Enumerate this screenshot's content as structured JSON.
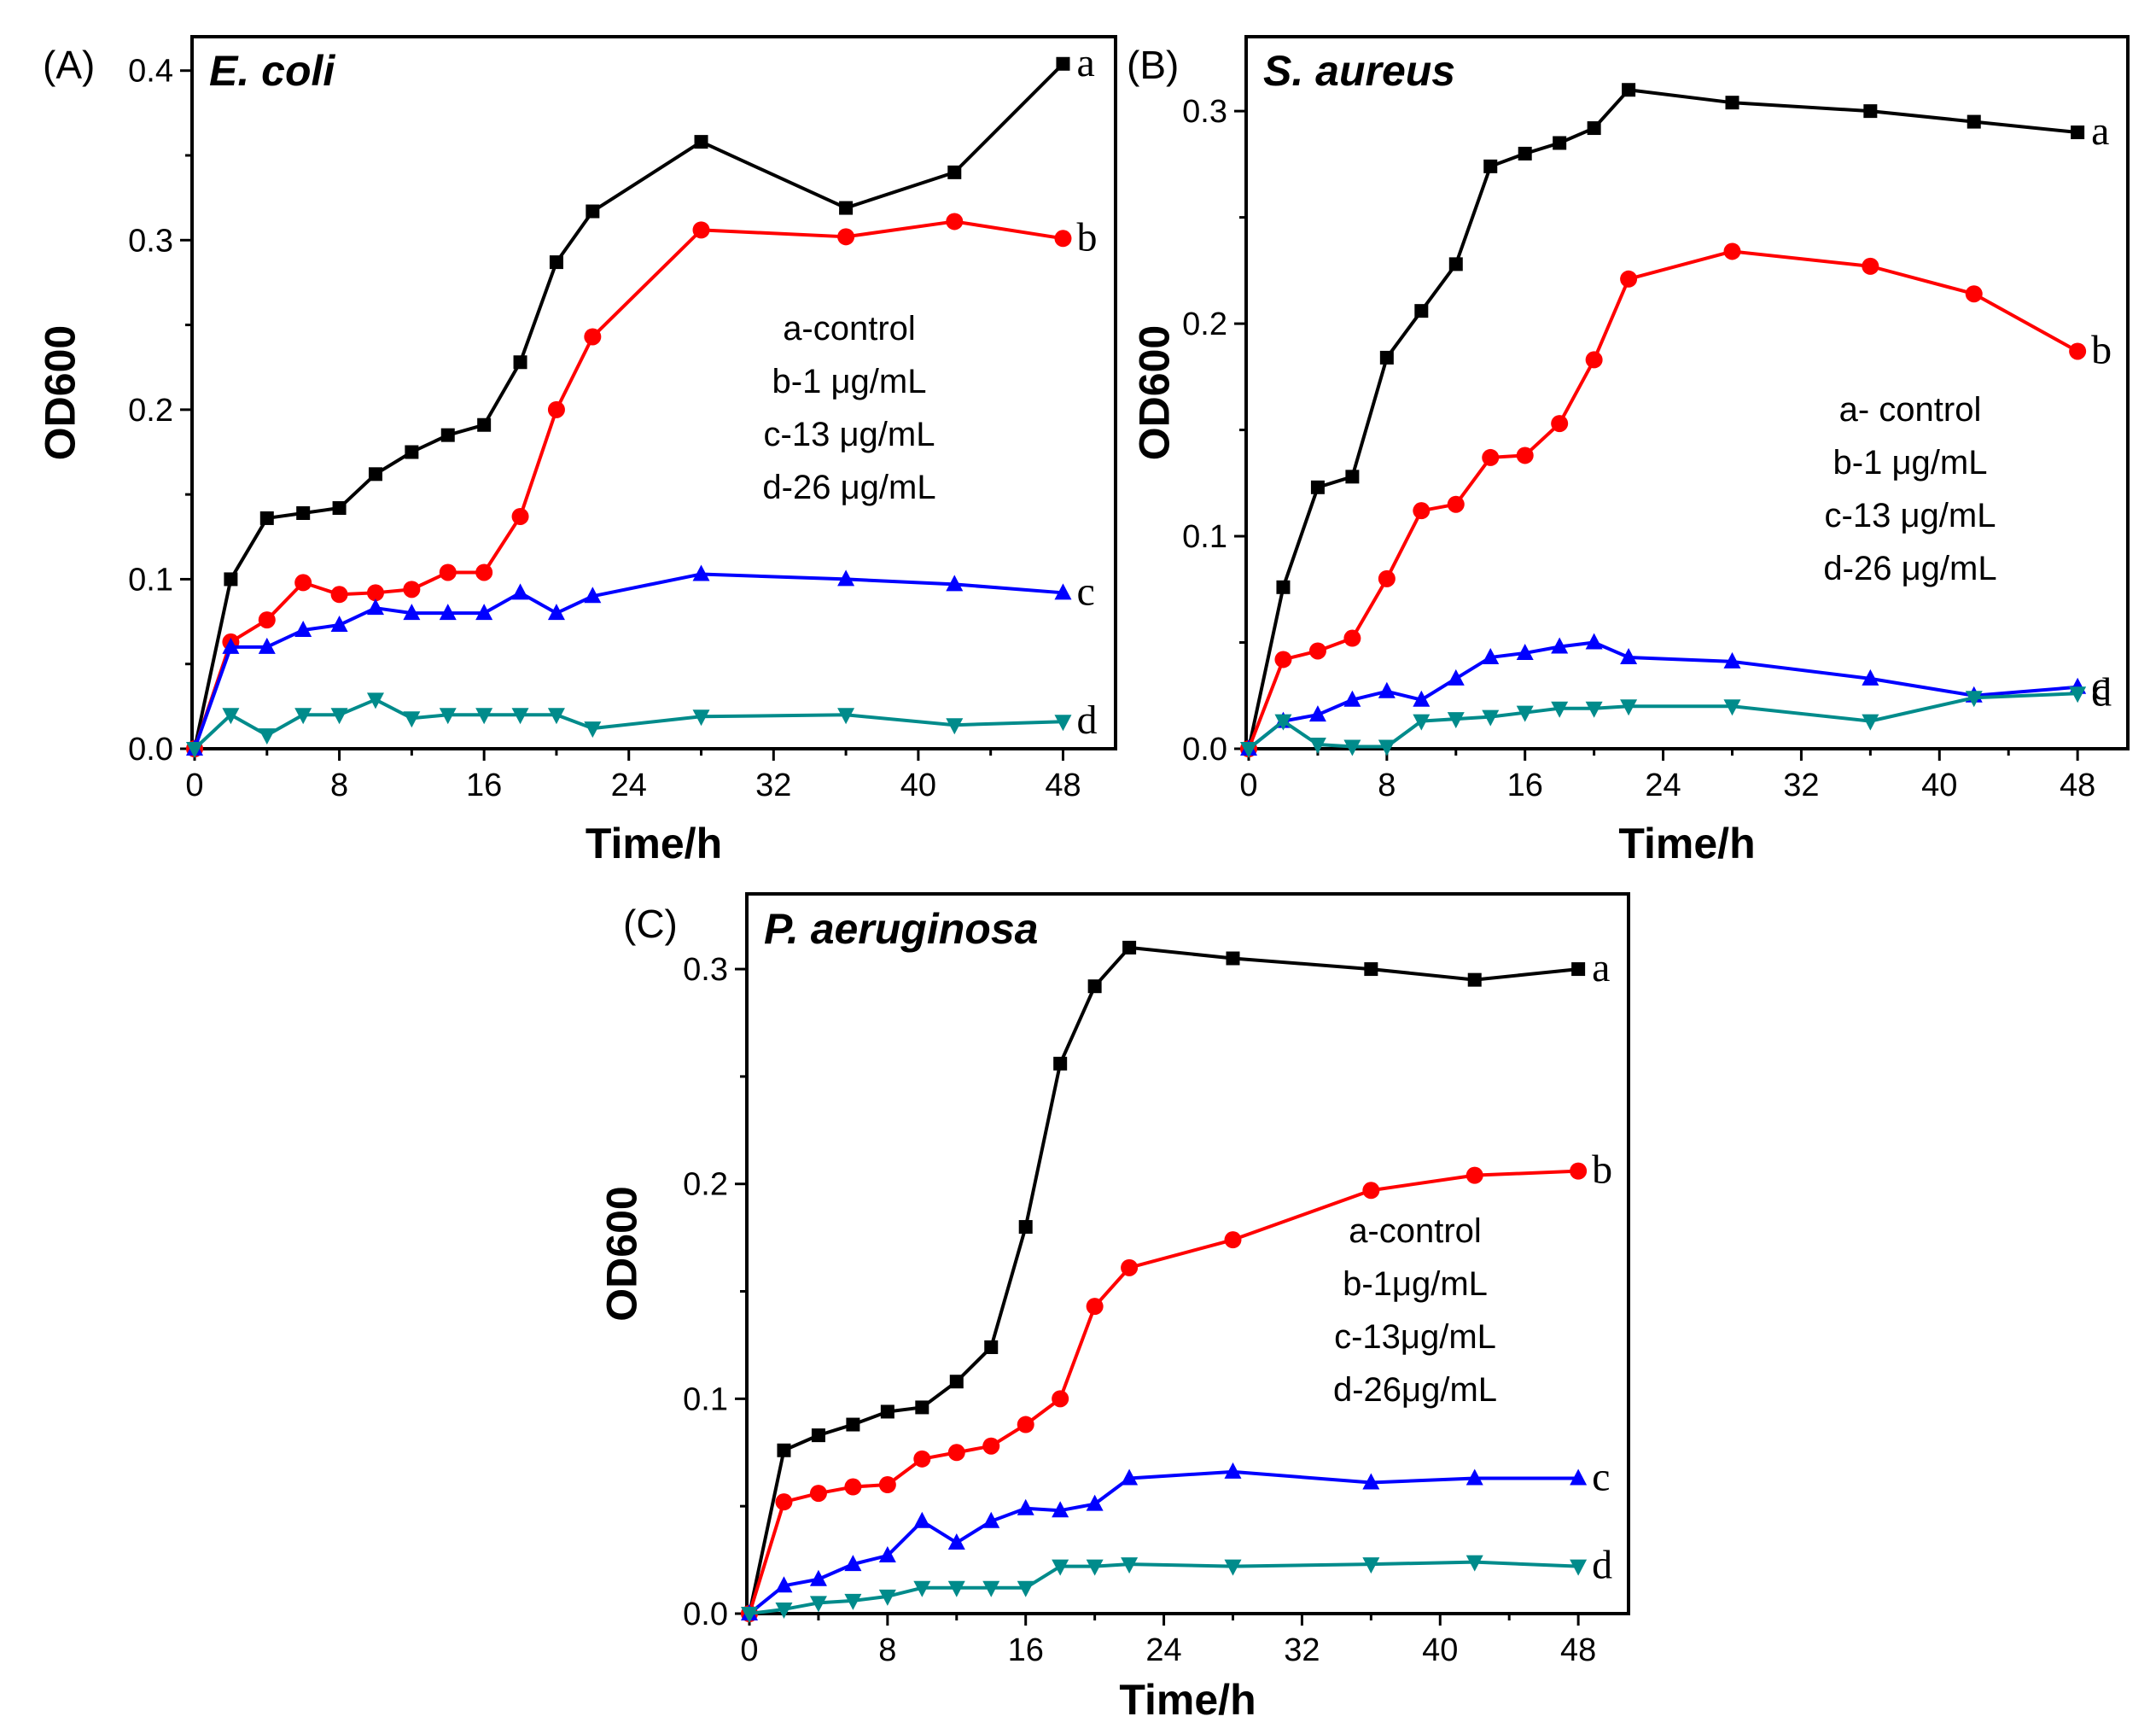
{
  "chart_data": [
    {
      "type": "line",
      "panel": "(A)",
      "title": "E. coli",
      "xlabel": "Time/h",
      "ylabel": "OD600",
      "xlim": [
        0,
        50
      ],
      "ylim": [
        0,
        0.42
      ],
      "xticks": [
        "0",
        "8",
        "16",
        "24",
        "32",
        "40",
        "48"
      ],
      "yticks": [
        "0.0",
        "0.1",
        "0.2",
        "0.3",
        "0.4"
      ],
      "legend": [
        "a-control",
        "b-1 μg/mL",
        "c-13 μg/mL",
        "d-26 μg/mL"
      ],
      "legend_position": "right-center",
      "series": [
        {
          "name": "a",
          "color": "#000000",
          "marker": "square",
          "x": [
            0,
            2,
            4,
            6,
            8,
            10,
            12,
            14,
            16,
            18,
            20,
            22,
            28,
            36,
            42,
            48
          ],
          "y": [
            0.0,
            0.1,
            0.136,
            0.139,
            0.142,
            0.162,
            0.175,
            0.185,
            0.191,
            0.228,
            0.287,
            0.317,
            0.358,
            0.319,
            0.34,
            0.404
          ]
        },
        {
          "name": "b",
          "color": "#ff0000",
          "marker": "circle",
          "x": [
            0,
            2,
            4,
            6,
            8,
            10,
            12,
            14,
            16,
            18,
            20,
            22,
            28,
            36,
            42,
            48
          ],
          "y": [
            0.0,
            0.063,
            0.076,
            0.098,
            0.091,
            0.092,
            0.094,
            0.104,
            0.104,
            0.137,
            0.2,
            0.243,
            0.306,
            0.302,
            0.311,
            0.301
          ]
        },
        {
          "name": "c",
          "color": "#0000ff",
          "marker": "triangle-up",
          "x": [
            0,
            2,
            4,
            6,
            8,
            10,
            12,
            14,
            16,
            18,
            20,
            22,
            28,
            36,
            42,
            48
          ],
          "y": [
            0.0,
            0.06,
            0.06,
            0.07,
            0.073,
            0.083,
            0.08,
            0.08,
            0.08,
            0.092,
            0.08,
            0.09,
            0.103,
            0.1,
            0.097,
            0.092
          ]
        },
        {
          "name": "d",
          "color": "#008b8b",
          "marker": "triangle-down",
          "x": [
            0,
            2,
            4,
            6,
            8,
            10,
            12,
            14,
            16,
            18,
            20,
            22,
            28,
            36,
            42,
            48
          ],
          "y": [
            0.0,
            0.02,
            0.008,
            0.02,
            0.02,
            0.029,
            0.018,
            0.02,
            0.02,
            0.02,
            0.02,
            0.012,
            0.019,
            0.02,
            0.014,
            0.016
          ]
        }
      ]
    },
    {
      "type": "line",
      "panel": "(B)",
      "title": "S. aureus",
      "xlabel": "Time/h",
      "ylabel": "OD600",
      "xlim": [
        0,
        50
      ],
      "ylim": [
        0,
        0.335
      ],
      "xticks": [
        "0",
        "8",
        "16",
        "24",
        "32",
        "40",
        "48"
      ],
      "yticks": [
        "0.0",
        "0.1",
        "0.2",
        "0.3"
      ],
      "legend": [
        "a- control",
        "b-1 μg/mL",
        "c-13 μg/mL",
        "d-26 μg/mL"
      ],
      "legend_position": "right-center",
      "series": [
        {
          "name": "a",
          "color": "#000000",
          "marker": "square",
          "x": [
            0,
            2,
            4,
            6,
            8,
            10,
            12,
            14,
            16,
            18,
            20,
            22,
            28,
            36,
            42,
            48
          ],
          "y": [
            0.0,
            0.076,
            0.123,
            0.128,
            0.184,
            0.206,
            0.228,
            0.274,
            0.28,
            0.285,
            0.292,
            0.31,
            0.304,
            0.3,
            0.295,
            0.29
          ]
        },
        {
          "name": "b",
          "color": "#ff0000",
          "marker": "circle",
          "x": [
            0,
            2,
            4,
            6,
            8,
            10,
            12,
            14,
            16,
            18,
            20,
            22,
            28,
            36,
            42,
            48
          ],
          "y": [
            0.0,
            0.042,
            0.046,
            0.052,
            0.08,
            0.112,
            0.115,
            0.137,
            0.138,
            0.153,
            0.183,
            0.221,
            0.234,
            0.227,
            0.214,
            0.187
          ]
        },
        {
          "name": "c",
          "color": "#0000ff",
          "marker": "triangle-up",
          "x": [
            0,
            2,
            4,
            6,
            8,
            10,
            12,
            14,
            16,
            18,
            20,
            22,
            28,
            36,
            42,
            48
          ],
          "y": [
            0.0,
            0.013,
            0.016,
            0.023,
            0.027,
            0.023,
            0.033,
            0.043,
            0.045,
            0.048,
            0.05,
            0.043,
            0.041,
            0.033,
            0.025,
            0.029
          ]
        },
        {
          "name": "d",
          "color": "#008b8b",
          "marker": "triangle-down",
          "x": [
            0,
            2,
            4,
            6,
            8,
            10,
            12,
            14,
            16,
            18,
            20,
            22,
            28,
            36,
            42,
            48
          ],
          "y": [
            0.0,
            0.013,
            0.002,
            0.001,
            0.001,
            0.013,
            0.014,
            0.015,
            0.017,
            0.019,
            0.019,
            0.02,
            0.02,
            0.013,
            0.024,
            0.026
          ]
        }
      ]
    },
    {
      "type": "line",
      "panel": "(C)",
      "title": "P. aeruginosa",
      "xlabel": "Time/h",
      "ylabel": "OD600",
      "xlim": [
        0,
        50
      ],
      "ylim": [
        0,
        0.335
      ],
      "xticks": [
        "0",
        "8",
        "16",
        "24",
        "32",
        "40",
        "48"
      ],
      "yticks": [
        "0.0",
        "0.1",
        "0.2",
        "0.3"
      ],
      "legend": [
        "a-control",
        "b-1μg/mL",
        "c-13μg/mL",
        "d-26μg/mL"
      ],
      "legend_position": "right-center",
      "series": [
        {
          "name": "a",
          "color": "#000000",
          "marker": "square",
          "x": [
            0,
            2,
            4,
            6,
            8,
            10,
            12,
            14,
            16,
            18,
            20,
            22,
            28,
            36,
            42,
            48
          ],
          "y": [
            0.0,
            0.076,
            0.083,
            0.088,
            0.094,
            0.096,
            0.108,
            0.124,
            0.18,
            0.256,
            0.292,
            0.31,
            0.305,
            0.3,
            0.295,
            0.3
          ]
        },
        {
          "name": "b",
          "color": "#ff0000",
          "marker": "circle",
          "x": [
            0,
            2,
            4,
            6,
            8,
            10,
            12,
            14,
            16,
            18,
            20,
            22,
            28,
            36,
            42,
            48
          ],
          "y": [
            0.0,
            0.052,
            0.056,
            0.059,
            0.06,
            0.072,
            0.075,
            0.078,
            0.088,
            0.1,
            0.143,
            0.161,
            0.174,
            0.197,
            0.204,
            0.206
          ]
        },
        {
          "name": "c",
          "color": "#0000ff",
          "marker": "triangle-up",
          "x": [
            0,
            2,
            4,
            6,
            8,
            10,
            12,
            14,
            16,
            18,
            20,
            22,
            28,
            36,
            42,
            48
          ],
          "y": [
            0.0,
            0.013,
            0.016,
            0.023,
            0.027,
            0.043,
            0.033,
            0.043,
            0.049,
            0.048,
            0.051,
            0.063,
            0.066,
            0.061,
            0.063,
            0.063
          ]
        },
        {
          "name": "d",
          "color": "#008b8b",
          "marker": "triangle-down",
          "x": [
            0,
            2,
            4,
            6,
            8,
            10,
            12,
            14,
            16,
            18,
            20,
            22,
            28,
            36,
            42,
            48
          ],
          "y": [
            0.0,
            0.002,
            0.005,
            0.006,
            0.008,
            0.012,
            0.012,
            0.012,
            0.012,
            0.022,
            0.022,
            0.023,
            0.022,
            0.023,
            0.024,
            0.022
          ]
        }
      ]
    }
  ]
}
